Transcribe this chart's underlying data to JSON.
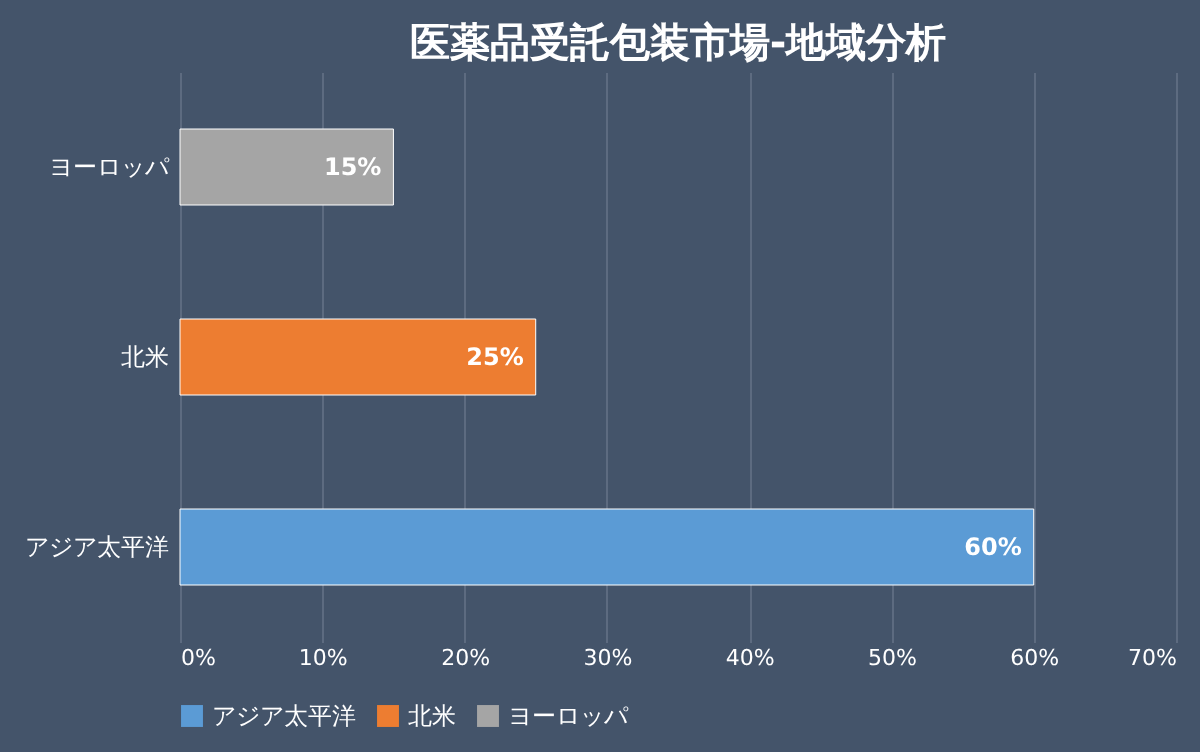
{
  "chart_data": {
    "type": "bar",
    "orientation": "horizontal",
    "title": "医薬品受託包装市場-地域分析",
    "categories": [
      "ヨーロッパ",
      "北米",
      "アジア太平洋"
    ],
    "series": [
      {
        "name": "アジア太平洋",
        "color": "#5b9bd5",
        "values": [
          null,
          null,
          60
        ],
        "value_labels": [
          null,
          null,
          "60%"
        ]
      },
      {
        "name": "北米",
        "color": "#ed7d31",
        "values": [
          null,
          25,
          null
        ],
        "value_labels": [
          null,
          "25%",
          null
        ]
      },
      {
        "name": "ヨーロッパ",
        "color": "#a5a5a5",
        "values": [
          15,
          null,
          null
        ],
        "value_labels": [
          "15%",
          null,
          null
        ]
      }
    ],
    "xlim": [
      0,
      70
    ],
    "xticks": [
      {
        "value": 0,
        "label": "0%"
      },
      {
        "value": 10,
        "label": "10%"
      },
      {
        "value": 20,
        "label": "20%"
      },
      {
        "value": 30,
        "label": "30%"
      },
      {
        "value": 40,
        "label": "40%"
      },
      {
        "value": 50,
        "label": "50%"
      },
      {
        "value": 60,
        "label": "60%"
      },
      {
        "value": 70,
        "label": "70%"
      }
    ],
    "grid": "x",
    "legend": "bottom"
  }
}
